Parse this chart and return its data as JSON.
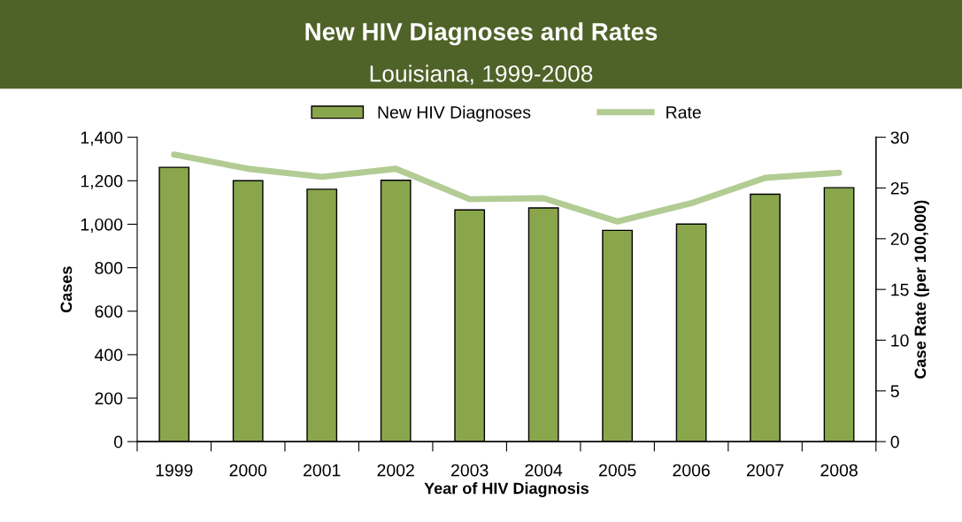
{
  "chart_data": {
    "type": "bar",
    "title": "New HIV Diagnoses and Rates",
    "subtitle": "Louisiana, 1999-2008",
    "xlabel": "Year of HIV Diagnosis",
    "ylabel": "Cases",
    "y2label": "Case Rate (per 100,000)",
    "categories": [
      "1999",
      "2000",
      "2001",
      "2002",
      "2003",
      "2004",
      "2005",
      "2006",
      "2007",
      "2008"
    ],
    "series": [
      {
        "name": "New HIV Diagnoses",
        "color": "#8aa64c",
        "values": [
          1262,
          1200,
          1161,
          1202,
          1066,
          1075,
          972,
          1001,
          1138,
          1168
        ]
      },
      {
        "name": "Rate",
        "type": "line",
        "axis": "y2",
        "color": "#b2cc94",
        "values": [
          28.3,
          26.9,
          26.1,
          26.9,
          23.9,
          24.0,
          21.7,
          23.5,
          26.0,
          26.5
        ]
      }
    ],
    "ylim": [
      0,
      1400
    ],
    "yticks": [
      {
        "value": 0,
        "label": "0"
      },
      {
        "value": 200,
        "label": "200"
      },
      {
        "value": 400,
        "label": "400"
      },
      {
        "value": 600,
        "label": "600"
      },
      {
        "value": 800,
        "label": "800"
      },
      {
        "value": 1000,
        "label": "1,000"
      },
      {
        "value": 1200,
        "label": "1,200"
      },
      {
        "value": 1400,
        "label": "1,400"
      }
    ],
    "y2lim": [
      0,
      30
    ],
    "y2ticks": [
      0,
      5,
      10,
      15,
      20,
      25,
      30
    ],
    "grid": false,
    "legend": "top"
  }
}
